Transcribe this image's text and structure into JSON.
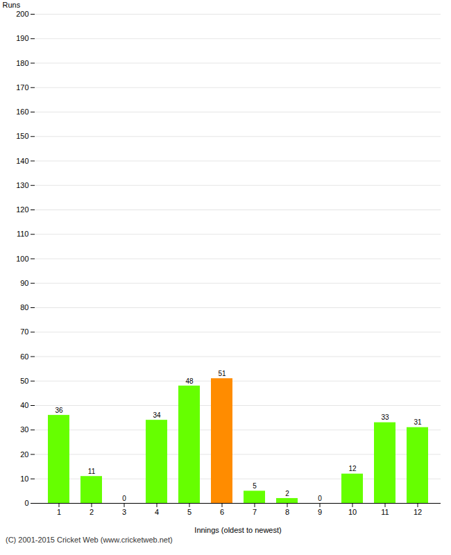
{
  "chart_data": {
    "type": "bar",
    "categories": [
      "1",
      "2",
      "3",
      "4",
      "5",
      "6",
      "7",
      "8",
      "9",
      "10",
      "11",
      "12"
    ],
    "values": [
      36,
      11,
      0,
      34,
      48,
      51,
      5,
      2,
      0,
      12,
      33,
      31
    ],
    "colors": [
      "#66ff00",
      "#66ff00",
      "#66ff00",
      "#66ff00",
      "#66ff00",
      "#ff8c00",
      "#66ff00",
      "#66ff00",
      "#66ff00",
      "#66ff00",
      "#66ff00",
      "#66ff00"
    ],
    "x_label": "Innings (oldest to newest)",
    "y_label": "Runs",
    "ylim": [
      0,
      200
    ],
    "yticks": [
      0,
      10,
      20,
      30,
      40,
      50,
      60,
      70,
      80,
      90,
      100,
      110,
      120,
      130,
      140,
      150,
      160,
      170,
      180,
      190,
      200
    ],
    "grid": true,
    "data_labels": true,
    "annotations": [
      "(C) 2001-2015 Cricket Web (www.cricketweb.net)"
    ]
  }
}
